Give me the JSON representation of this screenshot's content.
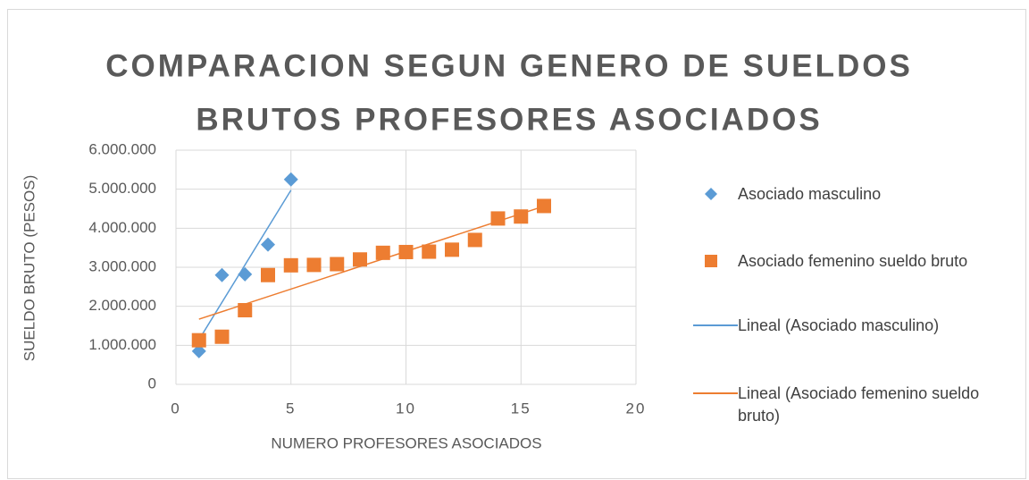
{
  "chart_data": {
    "type": "scatter",
    "title": [
      "COMPARACION SEGUN GENERO DE SUELDOS",
      "BRUTOS PROFESORES ASOCIADOS"
    ],
    "xlabel": "NUMERO PROFESORES ASOCIADOS",
    "ylabel": "SUELDO BRUTO (PESOS)",
    "xlim": [
      0,
      20
    ],
    "xticks": [
      0,
      5,
      10,
      15,
      20
    ],
    "ylim": [
      0,
      6000000
    ],
    "yticks": [
      0,
      {
        "value": 1000000,
        "label": "1.000.000"
      },
      {
        "value": 2000000,
        "label": "2.000.000"
      },
      {
        "value": 3000000,
        "label": "3.000.000"
      },
      {
        "value": 4000000,
        "label": "4.000.000"
      },
      {
        "value": 5000000,
        "label": "5.000.000"
      },
      {
        "value": 6000000,
        "label": "6.000.000"
      }
    ],
    "grid": true,
    "legend": "right",
    "series": [
      {
        "name": "Asociado masculino",
        "color": "#5b9bd5",
        "marker": "diamond",
        "x": [
          1,
          2,
          3,
          4,
          5
        ],
        "values": [
          850000,
          2800000,
          2820000,
          3580000,
          5250000
        ],
        "trendline": {
          "name": "Lineal (Asociado masculino)",
          "color": "#5b9bd5"
        }
      },
      {
        "name": "Asociado femenino sueldo bruto",
        "color": "#ed7d31",
        "marker": "square",
        "x": [
          1,
          2,
          3,
          4,
          5,
          6,
          7,
          8,
          9,
          10,
          11,
          12,
          13,
          14,
          15,
          16
        ],
        "values": [
          1130000,
          1220000,
          1900000,
          2800000,
          3050000,
          3060000,
          3080000,
          3200000,
          3370000,
          3390000,
          3400000,
          3450000,
          3700000,
          4250000,
          4300000,
          4570000
        ],
        "trendline": {
          "name": "Lineal (Asociado femenino sueldo bruto)",
          "color": "#ed7d31"
        }
      }
    ]
  }
}
